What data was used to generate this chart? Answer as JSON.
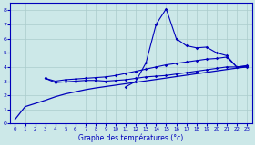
{
  "bg_color": "#cce8e8",
  "grid_color": "#aacccc",
  "line_color": "#0000bb",
  "xlabel": "Graphe des températures (°c)",
  "xlim": [
    -0.5,
    23.5
  ],
  "ylim": [
    0,
    8.5
  ],
  "xticks": [
    0,
    1,
    2,
    3,
    4,
    5,
    6,
    7,
    8,
    9,
    10,
    11,
    12,
    13,
    14,
    15,
    16,
    17,
    18,
    19,
    20,
    21,
    22,
    23
  ],
  "yticks": [
    0,
    1,
    2,
    3,
    4,
    5,
    6,
    7,
    8
  ],
  "series": [
    {
      "x": [
        0,
        1,
        3,
        4,
        5,
        6,
        7,
        8,
        9,
        10,
        11,
        12,
        13,
        14,
        15,
        16,
        17,
        18,
        19,
        20,
        21,
        22,
        23
      ],
      "y": [
        0.3,
        1.2,
        1.65,
        1.9,
        2.1,
        2.25,
        2.4,
        2.52,
        2.62,
        2.72,
        2.82,
        2.92,
        3.02,
        3.12,
        3.22,
        3.32,
        3.42,
        3.52,
        3.62,
        3.72,
        3.82,
        3.92,
        4.0
      ],
      "marker": false
    },
    {
      "x": [
        3,
        4,
        5,
        6,
        7,
        8,
        9,
        10,
        11,
        12,
        13,
        14,
        15,
        16,
        17,
        18,
        19,
        20,
        21,
        22,
        23
      ],
      "y": [
        3.2,
        2.9,
        2.95,
        3.0,
        3.05,
        3.05,
        3.0,
        3.05,
        3.1,
        3.2,
        3.3,
        3.35,
        3.4,
        3.5,
        3.6,
        3.7,
        3.8,
        3.9,
        4.0,
        4.0,
        4.0
      ],
      "marker": true
    },
    {
      "x": [
        3,
        4,
        5,
        6,
        7,
        8,
        9,
        10,
        11,
        12,
        13,
        14,
        15,
        16,
        17,
        18,
        19,
        20,
        21,
        22,
        23
      ],
      "y": [
        3.2,
        3.0,
        3.1,
        3.15,
        3.2,
        3.25,
        3.3,
        3.4,
        3.55,
        3.7,
        3.85,
        4.0,
        4.15,
        4.25,
        4.35,
        4.45,
        4.55,
        4.6,
        4.7,
        4.0,
        4.1
      ],
      "marker": true
    },
    {
      "x": [
        11,
        12,
        13,
        14,
        15,
        16,
        17,
        18,
        19,
        20,
        21,
        22,
        23
      ],
      "y": [
        2.6,
        3.0,
        4.3,
        7.0,
        8.1,
        6.0,
        5.5,
        5.35,
        5.4,
        5.0,
        4.8,
        4.0,
        4.05
      ],
      "marker": true
    }
  ]
}
